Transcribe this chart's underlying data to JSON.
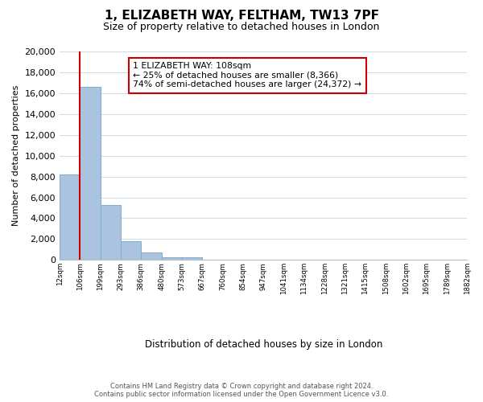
{
  "title_line1": "1, ELIZABETH WAY, FELTHAM, TW13 7PF",
  "title_line2": "Size of property relative to detached houses in London",
  "xlabel": "Distribution of detached houses by size in London",
  "ylabel": "Number of detached properties",
  "bar_values": [
    8200,
    16600,
    5300,
    1800,
    750,
    280,
    230,
    0,
    0,
    0,
    0,
    0,
    0,
    0,
    0,
    0,
    0,
    0,
    0,
    0
  ],
  "tick_labels": [
    "12sqm",
    "106sqm",
    "199sqm",
    "293sqm",
    "386sqm",
    "480sqm",
    "573sqm",
    "667sqm",
    "760sqm",
    "854sqm",
    "947sqm",
    "1041sqm",
    "1134sqm",
    "1228sqm",
    "1321sqm",
    "1415sqm",
    "1508sqm",
    "1602sqm",
    "1695sqm",
    "1789sqm",
    "1882sqm"
  ],
  "bar_color": "#aac4e0",
  "bar_edge_color": "#7aadd0",
  "vline_x": 0.5,
  "vline_color": "#cc0000",
  "annotation_title": "1 ELIZABETH WAY: 108sqm",
  "annotation_line1": "← 25% of detached houses are smaller (8,366)",
  "annotation_line2": "74% of semi-detached houses are larger (24,372) →",
  "annotation_box_color": "#ffffff",
  "annotation_box_edge": "#cc0000",
  "ylim": [
    0,
    20000
  ],
  "yticks": [
    0,
    2000,
    4000,
    6000,
    8000,
    10000,
    12000,
    14000,
    16000,
    18000,
    20000
  ],
  "footer_line1": "Contains HM Land Registry data © Crown copyright and database right 2024.",
  "footer_line2": "Contains public sector information licensed under the Open Government Licence v3.0.",
  "background_color": "#ffffff",
  "grid_color": "#d0dce8"
}
